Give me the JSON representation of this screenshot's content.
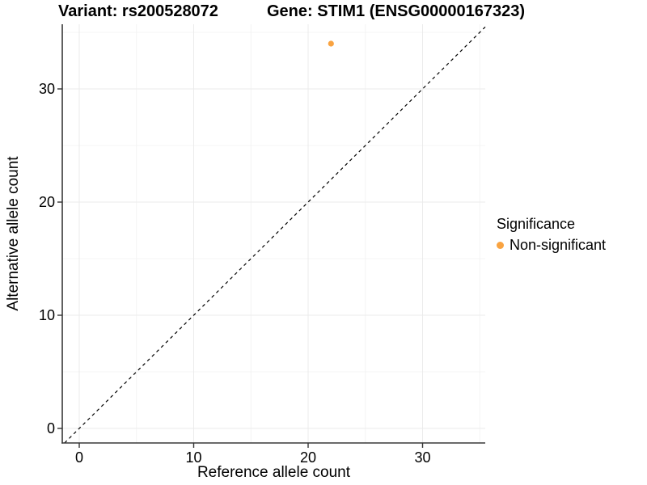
{
  "title": {
    "variant": "Variant: rs200528072",
    "gene": "Gene: STIM1 (ENSG00000167323)"
  },
  "axes": {
    "x_label": "Reference allele count",
    "y_label": "Alternative allele count"
  },
  "legend": {
    "title": "Significance",
    "items": [
      {
        "label": "Non-significant",
        "color": "#F9A341"
      }
    ]
  },
  "colors": {
    "point": "#F9A341",
    "axis_line": "#383838",
    "tick": "#333333",
    "tick_label": "#000000",
    "grid_major": "#ebebeb",
    "grid_minor": "#f4f4f4",
    "diagonal": "#000000"
  },
  "chart_data": {
    "type": "scatter",
    "title": "Variant: rs200528072    Gene: STIM1 (ENSG00000167323)",
    "xlabel": "Reference allele count",
    "ylabel": "Alternative allele count",
    "x_ticks": [
      0,
      10,
      20,
      30
    ],
    "y_ticks": [
      0,
      10,
      20,
      30
    ],
    "minor_ticks": [
      5,
      15,
      25,
      35
    ],
    "xlim": [
      -1.5,
      35.5
    ],
    "ylim": [
      -1.3,
      35.7
    ],
    "grid": true,
    "legend_position": "right",
    "series": [
      {
        "name": "Non-significant",
        "color": "#F9A341",
        "points": [
          {
            "x": 22,
            "y": 34
          }
        ]
      }
    ],
    "reference_line": {
      "type": "diagonal",
      "slope": 1,
      "intercept": 0,
      "style": "dashed"
    }
  }
}
